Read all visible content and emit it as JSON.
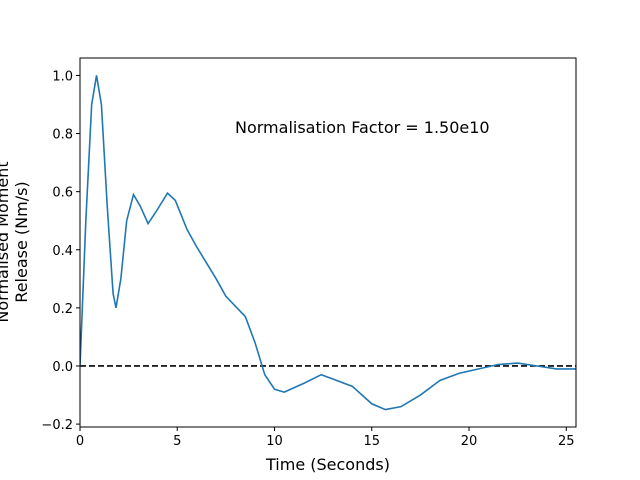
{
  "chart_data": {
    "type": "line",
    "annotation": "Normalisation Factor = 1.50e10",
    "xlabel": "Time (Seconds)",
    "ylabel": [
      "Normalised Moment",
      "Release (Nm/s)"
    ],
    "x": [
      0,
      0.3,
      0.6,
      0.85,
      1.1,
      1.4,
      1.7,
      1.85,
      2.1,
      2.4,
      2.75,
      3.1,
      3.5,
      3.9,
      4.5,
      4.9,
      5.5,
      6.0,
      7.0,
      7.5,
      8.5,
      9.0,
      9.5,
      10.0,
      10.5,
      11.5,
      12.4,
      13.0,
      14.0,
      15.0,
      15.7,
      16.5,
      17.5,
      18.5,
      19.5,
      20.5,
      21.5,
      22.5,
      23.5,
      24.5,
      25.5
    ],
    "series": [
      {
        "color": "#1f77b4",
        "values": [
          0.0,
          0.5,
          0.9,
          1.0,
          0.9,
          0.55,
          0.25,
          0.2,
          0.3,
          0.5,
          0.59,
          0.55,
          0.49,
          0.53,
          0.595,
          0.57,
          0.47,
          0.41,
          0.3,
          0.24,
          0.17,
          0.08,
          -0.03,
          -0.08,
          -0.09,
          -0.06,
          -0.03,
          -0.045,
          -0.07,
          -0.13,
          -0.15,
          -0.14,
          -0.1,
          -0.05,
          -0.025,
          -0.01,
          0.005,
          0.01,
          0.0,
          -0.01,
          -0.01
        ]
      }
    ],
    "hline": {
      "value": 0,
      "color": "#000000",
      "style": "dashed"
    },
    "xlim": [
      0,
      25.5
    ],
    "ylim": [
      -0.21,
      1.06
    ],
    "xticks": [
      0,
      5,
      10,
      15,
      20,
      25
    ],
    "yticks": [
      {
        "value": -0.2,
        "label": "−0.2"
      },
      {
        "value": 0,
        "label": "0.0"
      },
      0.2,
      0.4,
      0.6,
      0.8,
      {
        "value": 1.0,
        "label": "1.0"
      }
    ],
    "grid": false
  }
}
